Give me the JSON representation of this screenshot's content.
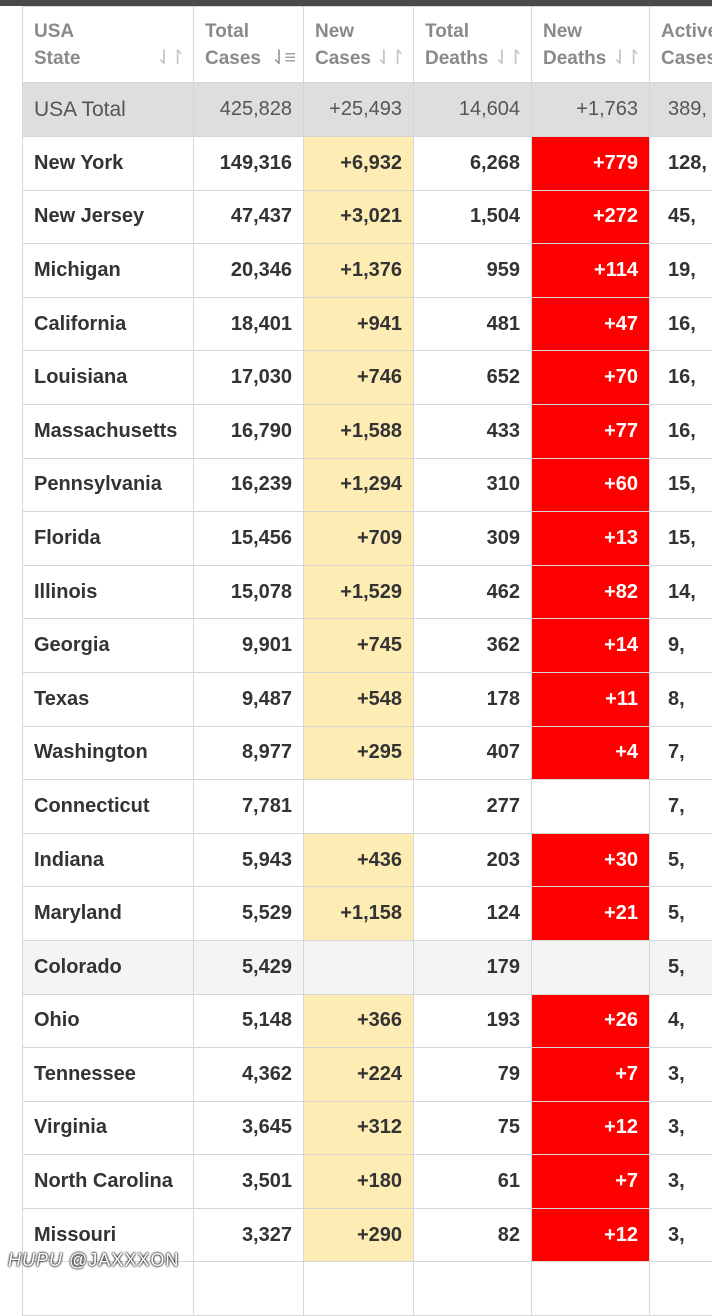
{
  "columns": [
    {
      "label_line1": "USA",
      "label_line2": "State"
    },
    {
      "label_line1": "Total",
      "label_line2": "Cases"
    },
    {
      "label_line1": "New",
      "label_line2": "Cases"
    },
    {
      "label_line1": "Total",
      "label_line2": "Deaths"
    },
    {
      "label_line1": "New",
      "label_line2": "Deaths"
    },
    {
      "label_line1": "Active",
      "label_line2": "Cases"
    }
  ],
  "sort_icon": "sort-arrows-icon",
  "total_row": {
    "state": "USA Total",
    "total_cases": "425,828",
    "new_cases": "+25,493",
    "total_deaths": "14,604",
    "new_deaths": "+1,763",
    "active_cases": "389,"
  },
  "rows": [
    {
      "state": "New York",
      "total_cases": "149,316",
      "new_cases": "+6,932",
      "total_deaths": "6,268",
      "new_deaths": "+779",
      "active_cases": "128,"
    },
    {
      "state": "New Jersey",
      "total_cases": "47,437",
      "new_cases": "+3,021",
      "total_deaths": "1,504",
      "new_deaths": "+272",
      "active_cases": "45,"
    },
    {
      "state": "Michigan",
      "total_cases": "20,346",
      "new_cases": "+1,376",
      "total_deaths": "959",
      "new_deaths": "+114",
      "active_cases": "19,"
    },
    {
      "state": "California",
      "total_cases": "18,401",
      "new_cases": "+941",
      "total_deaths": "481",
      "new_deaths": "+47",
      "active_cases": "16,"
    },
    {
      "state": "Louisiana",
      "total_cases": "17,030",
      "new_cases": "+746",
      "total_deaths": "652",
      "new_deaths": "+70",
      "active_cases": "16,"
    },
    {
      "state": "Massachusetts",
      "total_cases": "16,790",
      "new_cases": "+1,588",
      "total_deaths": "433",
      "new_deaths": "+77",
      "active_cases": "16,"
    },
    {
      "state": "Pennsylvania",
      "total_cases": "16,239",
      "new_cases": "+1,294",
      "total_deaths": "310",
      "new_deaths": "+60",
      "active_cases": "15,"
    },
    {
      "state": "Florida",
      "total_cases": "15,456",
      "new_cases": "+709",
      "total_deaths": "309",
      "new_deaths": "+13",
      "active_cases": "15,"
    },
    {
      "state": "Illinois",
      "total_cases": "15,078",
      "new_cases": "+1,529",
      "total_deaths": "462",
      "new_deaths": "+82",
      "active_cases": "14,"
    },
    {
      "state": "Georgia",
      "total_cases": "9,901",
      "new_cases": "+745",
      "total_deaths": "362",
      "new_deaths": "+14",
      "active_cases": "9,"
    },
    {
      "state": "Texas",
      "total_cases": "9,487",
      "new_cases": "+548",
      "total_deaths": "178",
      "new_deaths": "+11",
      "active_cases": "8,"
    },
    {
      "state": "Washington",
      "total_cases": "8,977",
      "new_cases": "+295",
      "total_deaths": "407",
      "new_deaths": "+4",
      "active_cases": "7,"
    },
    {
      "state": "Connecticut",
      "total_cases": "7,781",
      "new_cases": "",
      "total_deaths": "277",
      "new_deaths": "",
      "active_cases": "7,"
    },
    {
      "state": "Indiana",
      "total_cases": "5,943",
      "new_cases": "+436",
      "total_deaths": "203",
      "new_deaths": "+30",
      "active_cases": "5,"
    },
    {
      "state": "Maryland",
      "total_cases": "5,529",
      "new_cases": "+1,158",
      "total_deaths": "124",
      "new_deaths": "+21",
      "active_cases": "5,"
    },
    {
      "state": "Colorado",
      "total_cases": "5,429",
      "new_cases": "",
      "total_deaths": "179",
      "new_deaths": "",
      "active_cases": "5,",
      "shaded": true
    },
    {
      "state": "Ohio",
      "total_cases": "5,148",
      "new_cases": "+366",
      "total_deaths": "193",
      "new_deaths": "+26",
      "active_cases": "4,"
    },
    {
      "state": "Tennessee",
      "total_cases": "4,362",
      "new_cases": "+224",
      "total_deaths": "79",
      "new_deaths": "+7",
      "active_cases": "3,"
    },
    {
      "state": "Virginia",
      "total_cases": "3,645",
      "new_cases": "+312",
      "total_deaths": "75",
      "new_deaths": "+12",
      "active_cases": "3,"
    },
    {
      "state": "North Carolina",
      "total_cases": "3,501",
      "new_cases": "+180",
      "total_deaths": "61",
      "new_deaths": "+7",
      "active_cases": "3,"
    },
    {
      "state": "Missouri",
      "total_cases": "3,327",
      "new_cases": "+290",
      "total_deaths": "82",
      "new_deaths": "+12",
      "active_cases": "3,"
    },
    {
      "state": "",
      "total_cases": "",
      "new_cases": "",
      "total_deaths": "",
      "new_deaths": "",
      "active_cases": ""
    }
  ],
  "colors": {
    "new_cases_highlight": "#fdecb3",
    "new_deaths_highlight": "#ff0000",
    "total_row_bg": "#dedede"
  },
  "watermark": {
    "brand": "HUPU",
    "handle": "@JAXXXON"
  }
}
